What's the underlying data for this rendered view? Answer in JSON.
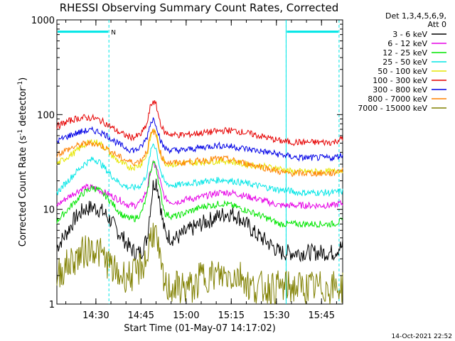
{
  "chart_data": {
    "type": "line",
    "title": "RHESSI Observing Summary Count Rates, Corrected",
    "xlabel": "Start Time (01-May-07 14:17:02)",
    "ylabel": "Corrected Count Rate (s⁻¹ detector⁻¹)",
    "ylabel_base": "Corrected Count Rate (s",
    "ylabel_mid": " detector",
    "ylabel_end": ")",
    "ylabel_exp": "-1",
    "y_scale": "log",
    "ylim": [
      1,
      1000
    ],
    "xlim_minutes": [
      0,
      95
    ],
    "x_ticks": [
      {
        "label": "14:30",
        "minutes": 12.97
      },
      {
        "label": "14:45",
        "minutes": 27.97
      },
      {
        "label": "15:00",
        "minutes": 42.97
      },
      {
        "label": "15:15",
        "minutes": 57.97
      },
      {
        "label": "15:30",
        "minutes": 72.97
      },
      {
        "label": "15:45",
        "minutes": 87.97
      }
    ],
    "y_ticks": [
      {
        "label": "1",
        "value": 1
      },
      {
        "label": "10",
        "value": 10
      },
      {
        "label": "100",
        "value": 100
      },
      {
        "label": "1000",
        "value": 1000
      }
    ],
    "legend_header": [
      "Det 1,3,4,5,6,9,",
      "Att 0"
    ],
    "legend_placement": "right",
    "night_markers": [
      {
        "minutes": 17.3,
        "label": "N"
      },
      {
        "minutes": 76.2,
        "label": ""
      },
      {
        "minutes": 93.8,
        "label": ""
      }
    ],
    "night_bars": [
      [
        0,
        17.3
      ],
      [
        76.2,
        93.8
      ]
    ],
    "night_bar_value": 750,
    "series": [
      {
        "name": "3 - 6 keV",
        "color": "#000000",
        "x": [
          0,
          3,
          6,
          9,
          12,
          14,
          16,
          18,
          20,
          22,
          24,
          26,
          28,
          30,
          31,
          32,
          33,
          34,
          35,
          36,
          38,
          40,
          42,
          44,
          46,
          48,
          50,
          52,
          54,
          56,
          58,
          60,
          62,
          64,
          66,
          68,
          70,
          72,
          74,
          76,
          78,
          80,
          82,
          84,
          86,
          88,
          90,
          92,
          94
        ],
        "y": [
          4,
          5.5,
          8,
          10,
          10.5,
          10,
          9,
          7.5,
          6,
          5,
          4,
          3.5,
          3.5,
          5,
          10,
          18,
          20,
          14,
          8,
          5.5,
          5,
          5,
          5.5,
          6,
          6.5,
          7,
          7.5,
          8,
          8.5,
          9,
          9,
          8.5,
          7.5,
          6.5,
          5.5,
          5,
          4.5,
          4,
          3.5,
          3.5,
          3.5,
          3.5,
          3.5,
          3.5,
          3.5,
          3.5,
          3.5,
          3.5,
          4
        ]
      },
      {
        "name": "6 - 12 keV",
        "color": "#e600e6",
        "x": [
          0,
          3,
          6,
          9,
          12,
          14,
          16,
          18,
          20,
          22,
          24,
          26,
          28,
          30,
          31,
          32,
          33,
          34,
          35,
          36,
          38,
          40,
          42,
          44,
          46,
          48,
          50,
          52,
          54,
          56,
          58,
          60,
          62,
          64,
          66,
          68,
          70,
          72,
          74,
          76,
          78,
          80,
          82,
          84,
          86,
          88,
          90,
          92,
          94
        ],
        "y": [
          11,
          13,
          15,
          17,
          17,
          16,
          15,
          14,
          13,
          12,
          11,
          11,
          12,
          16,
          25,
          30,
          28,
          22,
          16,
          13,
          12,
          12,
          12.5,
          13,
          13,
          13.5,
          14,
          14.5,
          15,
          15,
          15,
          14.5,
          14,
          13.5,
          13,
          12.5,
          12,
          11.5,
          11,
          11,
          11,
          11,
          11,
          11,
          11,
          11,
          11,
          11,
          11.5
        ]
      },
      {
        "name": "12 - 25 keV",
        "color": "#00e600",
        "x": [
          0,
          3,
          6,
          9,
          12,
          14,
          16,
          18,
          20,
          22,
          24,
          26,
          28,
          30,
          31,
          32,
          33,
          34,
          35,
          36,
          38,
          40,
          42,
          44,
          46,
          48,
          50,
          52,
          54,
          56,
          58,
          60,
          62,
          64,
          66,
          68,
          70,
          72,
          74,
          76,
          78,
          80,
          82,
          84,
          86,
          88,
          90,
          92,
          94
        ],
        "y": [
          7.5,
          9.5,
          12,
          15,
          17,
          16,
          14,
          12,
          10,
          8.5,
          8,
          8,
          9,
          14,
          24,
          32,
          28,
          18,
          12,
          9,
          8.5,
          8.5,
          9,
          9.5,
          10,
          10.5,
          11,
          11,
          11.5,
          11.5,
          11,
          10.5,
          10,
          9.5,
          9,
          8.5,
          8,
          7.5,
          7,
          7,
          7,
          7,
          7,
          7,
          7,
          7,
          7,
          7,
          7.5
        ]
      },
      {
        "name": "25 - 50 keV",
        "color": "#00e6e6",
        "x": [
          0,
          3,
          6,
          9,
          12,
          14,
          16,
          18,
          20,
          22,
          24,
          26,
          28,
          30,
          31,
          32,
          33,
          34,
          35,
          36,
          38,
          40,
          42,
          44,
          46,
          48,
          50,
          52,
          54,
          56,
          58,
          60,
          62,
          64,
          66,
          68,
          70,
          72,
          74,
          76,
          78,
          80,
          82,
          84,
          86,
          88,
          90,
          92,
          94
        ],
        "y": [
          15,
          19,
          24,
          30,
          34,
          32,
          27,
          23,
          20,
          18,
          17,
          17,
          18,
          24,
          38,
          50,
          44,
          30,
          22,
          19,
          18,
          18,
          18.5,
          19,
          19,
          19.5,
          20,
          20,
          20.5,
          20.5,
          20,
          19.5,
          19,
          18.5,
          18,
          17.5,
          17,
          16.5,
          16,
          16,
          15.5,
          15,
          15,
          15,
          15,
          15,
          15,
          15,
          15.5
        ]
      },
      {
        "name": "50 - 100 keV",
        "color": "#e6e600",
        "x": [
          0,
          3,
          6,
          9,
          12,
          14,
          16,
          18,
          20,
          22,
          24,
          26,
          28,
          30,
          31,
          32,
          33,
          34,
          35,
          36,
          38,
          40,
          42,
          44,
          46,
          48,
          50,
          52,
          54,
          56,
          58,
          60,
          62,
          64,
          66,
          68,
          70,
          72,
          74,
          76,
          78,
          80,
          82,
          84,
          86,
          88,
          90,
          92,
          94
        ],
        "y": [
          30,
          35,
          40,
          48,
          52,
          50,
          45,
          38,
          33,
          30,
          28,
          28,
          30,
          38,
          55,
          70,
          62,
          45,
          35,
          31,
          30,
          30,
          30.5,
          31,
          31,
          31.5,
          32,
          32,
          32.5,
          32.5,
          32,
          31,
          30,
          29.5,
          29,
          28.5,
          28,
          27.5,
          27,
          26,
          25,
          25,
          25,
          25,
          25,
          25,
          25,
          25,
          26
        ]
      },
      {
        "name": "100 - 300 keV",
        "color": "#e60000",
        "x": [
          0,
          3,
          6,
          9,
          12,
          14,
          16,
          18,
          20,
          22,
          24,
          26,
          28,
          30,
          31,
          32,
          33,
          34,
          35,
          36,
          38,
          40,
          42,
          44,
          46,
          48,
          50,
          52,
          54,
          56,
          58,
          60,
          62,
          64,
          66,
          68,
          70,
          72,
          74,
          76,
          78,
          80,
          82,
          84,
          86,
          88,
          90,
          92,
          94
        ],
        "y": [
          75,
          83,
          90,
          93,
          92,
          88,
          82,
          74,
          67,
          62,
          58,
          58,
          62,
          80,
          118,
          140,
          125,
          92,
          72,
          64,
          62,
          61,
          61,
          62,
          63,
          64,
          65,
          66,
          67,
          68,
          68,
          67,
          65,
          63,
          61,
          59,
          57,
          55,
          53,
          52,
          51,
          51,
          51,
          51,
          51,
          51,
          51,
          51,
          55
        ]
      },
      {
        "name": "300 - 800 keV",
        "color": "#0000e6",
        "x": [
          0,
          3,
          6,
          9,
          12,
          14,
          16,
          18,
          20,
          22,
          24,
          26,
          28,
          30,
          31,
          32,
          33,
          34,
          35,
          36,
          38,
          40,
          42,
          44,
          46,
          48,
          50,
          52,
          54,
          56,
          58,
          60,
          62,
          64,
          66,
          68,
          70,
          72,
          74,
          76,
          78,
          80,
          82,
          84,
          86,
          88,
          90,
          92,
          94
        ],
        "y": [
          52,
          58,
          63,
          67,
          68,
          66,
          62,
          56,
          50,
          46,
          43,
          42,
          45,
          58,
          80,
          90,
          80,
          60,
          48,
          44,
          42,
          42,
          42,
          43,
          44,
          45,
          46,
          47,
          47,
          47,
          46,
          45,
          44,
          43,
          42,
          41,
          40,
          39,
          38,
          37,
          36,
          35,
          35,
          35,
          35,
          35,
          35,
          35,
          37
        ]
      },
      {
        "name": "800 - 7000 keV",
        "color": "#ff8000",
        "x": [
          0,
          3,
          6,
          9,
          12,
          14,
          16,
          18,
          20,
          22,
          24,
          26,
          28,
          30,
          31,
          32,
          33,
          34,
          35,
          36,
          38,
          40,
          42,
          44,
          46,
          48,
          50,
          52,
          54,
          56,
          58,
          60,
          62,
          64,
          66,
          68,
          70,
          72,
          74,
          76,
          78,
          80,
          82,
          84,
          86,
          88,
          90,
          92,
          94
        ],
        "y": [
          38,
          42,
          46,
          49,
          50,
          48,
          45,
          41,
          37,
          34,
          32,
          31,
          33,
          42,
          58,
          68,
          60,
          44,
          35,
          32,
          31,
          31,
          31,
          32,
          32,
          33,
          33,
          34,
          34,
          34,
          33,
          32,
          31,
          30,
          29,
          28,
          27,
          26,
          25,
          24,
          24,
          24,
          24,
          24,
          24,
          24,
          24,
          24,
          26
        ]
      },
      {
        "name": "7000 - 15000 keV",
        "color": "#808000",
        "x": [
          0,
          3,
          6,
          9,
          12,
          14,
          16,
          18,
          20,
          22,
          24,
          26,
          28,
          30,
          31,
          32,
          33,
          34,
          35,
          36,
          38,
          40,
          42,
          44,
          46,
          48,
          50,
          52,
          54,
          56,
          58,
          60,
          62,
          64,
          66,
          68,
          70,
          72,
          74,
          76,
          78,
          80,
          82,
          84,
          86,
          88,
          90,
          92,
          94
        ],
        "y": [
          2,
          2.5,
          3,
          3.5,
          4,
          3.5,
          3,
          2.5,
          2,
          2,
          2,
          2,
          2.5,
          3,
          5,
          6,
          5,
          3,
          2,
          1.5,
          1.5,
          1.5,
          1.5,
          1.5,
          1.5,
          2,
          2,
          2,
          2,
          2,
          2,
          2,
          2,
          1.5,
          1.5,
          1.5,
          1.5,
          1.5,
          1.5,
          1.5,
          1.5,
          1.5,
          1.5,
          1.5,
          1.5,
          1.5,
          1.5,
          1.5,
          1.5
        ]
      }
    ]
  },
  "footer": {
    "timestamp": "14-Oct-2021 22:52"
  },
  "colors": {
    "night": "#00e6e6",
    "axes": "#000000",
    "background": "#ffffff"
  }
}
